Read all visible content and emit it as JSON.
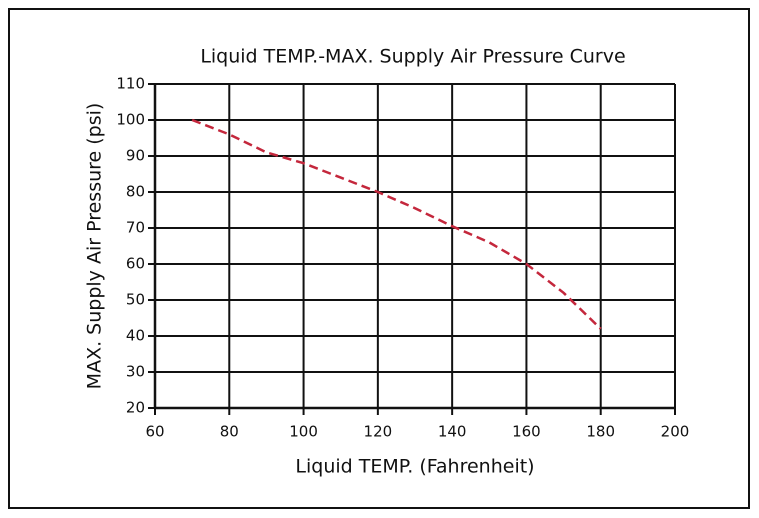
{
  "chart_data": {
    "type": "line",
    "title": "Liquid TEMP.-MAX. Supply Air Pressure Curve",
    "x_label": "Liquid TEMP. (Fahrenheit)",
    "y_label": "MAX. Supply Air Pressure (psi)",
    "x": [
      70,
      80,
      90,
      100,
      110,
      120,
      130,
      140,
      150,
      160,
      170,
      180
    ],
    "values": [
      100,
      96,
      91,
      88,
      84,
      80,
      75.5,
      70.5,
      66,
      60,
      52,
      42
    ],
    "color": "#c4273c",
    "line_style": "dashed",
    "xlim": [
      60,
      200
    ],
    "xticks": [
      60,
      80,
      100,
      120,
      140,
      160,
      180,
      200
    ],
    "ylim": [
      20,
      110
    ],
    "yticks": [
      20,
      30,
      40,
      50,
      60,
      70,
      80,
      90,
      100,
      110
    ],
    "grid": true
  }
}
